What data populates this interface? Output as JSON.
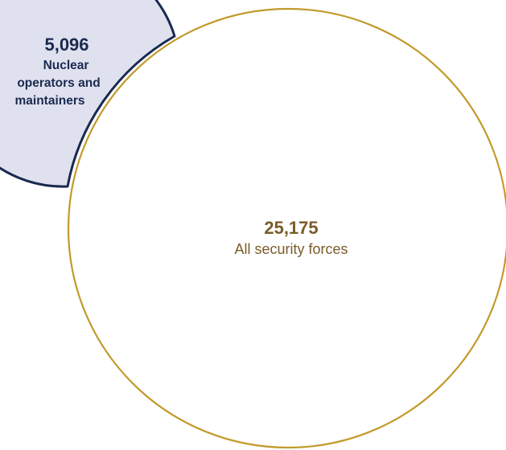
{
  "colors": {
    "small_fill": "#dfe1ef",
    "small_stroke": "#1a2a4f",
    "small_text": "#1a2a4f",
    "large_stroke": "#c29a2b",
    "large_text": "#7a5c2a",
    "background": "#ffffff"
  },
  "small_group": {
    "value": "5,096",
    "label_lines": [
      "Nuclear",
      "operators and",
      "maintainers"
    ]
  },
  "large_group": {
    "value": "25,175",
    "label": "All security forces"
  }
}
